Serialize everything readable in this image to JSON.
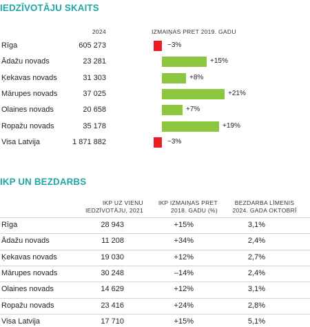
{
  "section1": {
    "title": "IEDZĪVOTĀJU SKAITS",
    "col_year": "2024",
    "col_change": "IZMAIŅAS PRET 2019. GADU",
    "rows": [
      {
        "name": "Rīga",
        "value": "605 273",
        "change": "−3%",
        "pct": -3
      },
      {
        "name": "Ādažu novads",
        "value": "23 281",
        "change": "+15%",
        "pct": 15
      },
      {
        "name": "Ķekavas novads",
        "value": "31 303",
        "change": "+8%",
        "pct": 8
      },
      {
        "name": "Mārupes novads",
        "value": "37 025",
        "change": "+21%",
        "pct": 21
      },
      {
        "name": "Olaines novads",
        "value": "20 658",
        "change": "+7%",
        "pct": 7
      },
      {
        "name": "Ropažu novads",
        "value": "35 178",
        "change": "+19%",
        "pct": 19
      },
      {
        "name": "Visa Latvija",
        "value": "1 871 882",
        "change": "−3%",
        "pct": -3
      }
    ],
    "colors": {
      "positive": "#8dc63f",
      "negative": "#ec1c24"
    }
  },
  "section2": {
    "title": "IKP UN BEZDARBS",
    "col1": [
      "IKP UZ VIENU",
      "IEDZĪVOTĀJU, 2021"
    ],
    "col2": [
      "IKP IZMAIŅAS PRET",
      "2018. GADU (%)"
    ],
    "col3": [
      "BEZDARBA LĪMENIS",
      "2024. GADA OKTOBRĪ"
    ],
    "rows": [
      {
        "name": "Rīga",
        "gdp": "28 943",
        "change": "+15%",
        "unemployment": "3,1%"
      },
      {
        "name": "Ādažu novads",
        "gdp": "11 208",
        "change": "+34%",
        "unemployment": "2,4%"
      },
      {
        "name": "Ķekavas novads",
        "gdp": "19 030",
        "change": "+12%",
        "unemployment": "2,7%"
      },
      {
        "name": "Mārupes novads",
        "gdp": "30 248",
        "change": "–14%",
        "unemployment": "2,4%"
      },
      {
        "name": "Olaines novads",
        "gdp": "14 629",
        "change": "+12%",
        "unemployment": "3,1%"
      },
      {
        "name": "Ropažu novads",
        "gdp": "23 416",
        "change": "+24%",
        "unemployment": "2,8%"
      },
      {
        "name": "Visa Latvija",
        "gdp": "17 710",
        "change": "+15%",
        "unemployment": "5,1%"
      }
    ]
  },
  "accent_color": "#1fa6a6"
}
